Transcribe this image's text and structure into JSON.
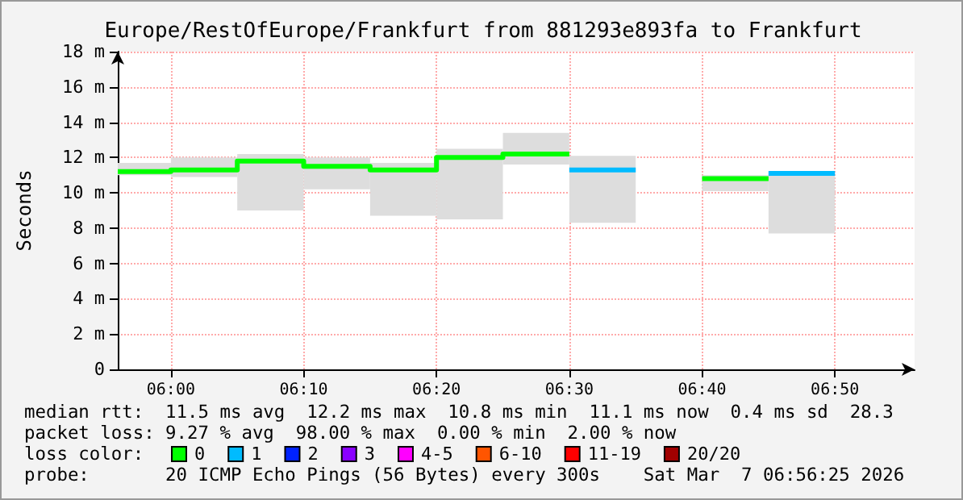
{
  "chart_data": {
    "type": "line",
    "title": "Europe/RestOfEurope/Frankfurt from 881293e893fa to Frankfurt",
    "ylabel": "Seconds",
    "legend_title": "loss color:",
    "annotations": [
      "median rtt:  11.5 ms avg  12.2 ms max  10.8 ms min  11.1 ms now  0.4 ms sd  28.3",
      "packet loss: 9.27 % avg  98.00 % max  0.00 % min  2.00 % now",
      "probe:       20 ICMP Echo Pings (56 Bytes) every 300s    Sat Mar  7 06:56:25 2026"
    ],
    "xlim": [
      "2026-03-07T05:56",
      "2026-03-07T06:56"
    ],
    "xticks": [
      {
        "value": "2026-03-07T06:00",
        "label": "06:00"
      },
      {
        "value": "2026-03-07T06:10",
        "label": "06:10"
      },
      {
        "value": "2026-03-07T06:20",
        "label": "06:20"
      },
      {
        "value": "2026-03-07T06:30",
        "label": "06:30"
      },
      {
        "value": "2026-03-07T06:40",
        "label": "06:40"
      },
      {
        "value": "2026-03-07T06:50",
        "label": "06:50"
      }
    ],
    "ylim": [
      0,
      18
    ],
    "yticks": [
      0,
      {
        "value": 2,
        "label": "2 m"
      },
      {
        "value": 4,
        "label": "4 m"
      },
      {
        "value": 6,
        "label": "6 m"
      },
      {
        "value": 8,
        "label": "8 m"
      },
      {
        "value": 10,
        "label": "10 m"
      },
      {
        "value": 12,
        "label": "12 m"
      },
      {
        "value": 14,
        "label": "14 m"
      },
      {
        "value": 16,
        "label": "16 m"
      },
      {
        "value": 18,
        "label": "18 m"
      }
    ],
    "grid": true,
    "legend": "bottom",
    "marker": "none",
    "series": [
      {
        "type": "bar",
        "color": "#dddddd",
        "x": [
          "2026-03-07T05:57:30",
          "2026-03-07T06:02:30",
          "2026-03-07T06:07:30",
          "2026-03-07T06:12:30",
          "2026-03-07T06:17:30",
          "2026-03-07T06:22:30",
          "2026-03-07T06:27:30",
          "2026-03-07T06:32:30",
          "2026-03-07T06:42:30",
          "2026-03-07T06:47:30"
        ],
        "base": [
          11.0,
          10.9,
          9.0,
          10.2,
          8.7,
          8.5,
          11.6,
          8.3,
          10.1,
          7.7
        ],
        "values": [
          0.7,
          1.1,
          3.2,
          1.8,
          3.0,
          4.0,
          1.8,
          3.8,
          0.9,
          3.5
        ]
      },
      {
        "name": "0",
        "color": "#00ff00",
        "x": [
          "2026-03-07T05:56",
          "2026-03-07T06:00",
          "2026-03-07T06:00",
          "2026-03-07T06:05",
          "2026-03-07T06:05",
          "2026-03-07T06:10",
          "2026-03-07T06:10",
          "2026-03-07T06:15",
          "2026-03-07T06:15",
          "2026-03-07T06:20",
          "2026-03-07T06:20",
          "2026-03-07T06:25",
          "2026-03-07T06:25",
          "2026-03-07T06:30",
          "2026-03-07T06:35",
          "2026-03-07T06:40",
          "2026-03-07T06:45"
        ],
        "values": [
          11.2,
          11.2,
          11.3,
          11.3,
          11.8,
          11.8,
          11.5,
          11.5,
          11.3,
          11.3,
          12.0,
          12.0,
          12.2,
          12.2,
          null,
          10.8,
          10.8
        ]
      },
      {
        "name": "1",
        "color": "#00bbff",
        "x": [
          "2026-03-07T06:30",
          "2026-03-07T06:35",
          "2026-03-07T06:40",
          "2026-03-07T06:45",
          "2026-03-07T06:50"
        ],
        "values": [
          11.3,
          11.3,
          null,
          11.1,
          11.1
        ]
      },
      {
        "name": "2",
        "color": "#0022ff"
      },
      {
        "name": "3",
        "color": "#8a00ff"
      },
      {
        "name": "4-5",
        "color": "#ff00ff"
      },
      {
        "name": "6-10",
        "color": "#ff5500"
      },
      {
        "name": "11-19",
        "color": "#ff0000"
      },
      {
        "name": "20/20",
        "color": "#a10000"
      }
    ]
  }
}
